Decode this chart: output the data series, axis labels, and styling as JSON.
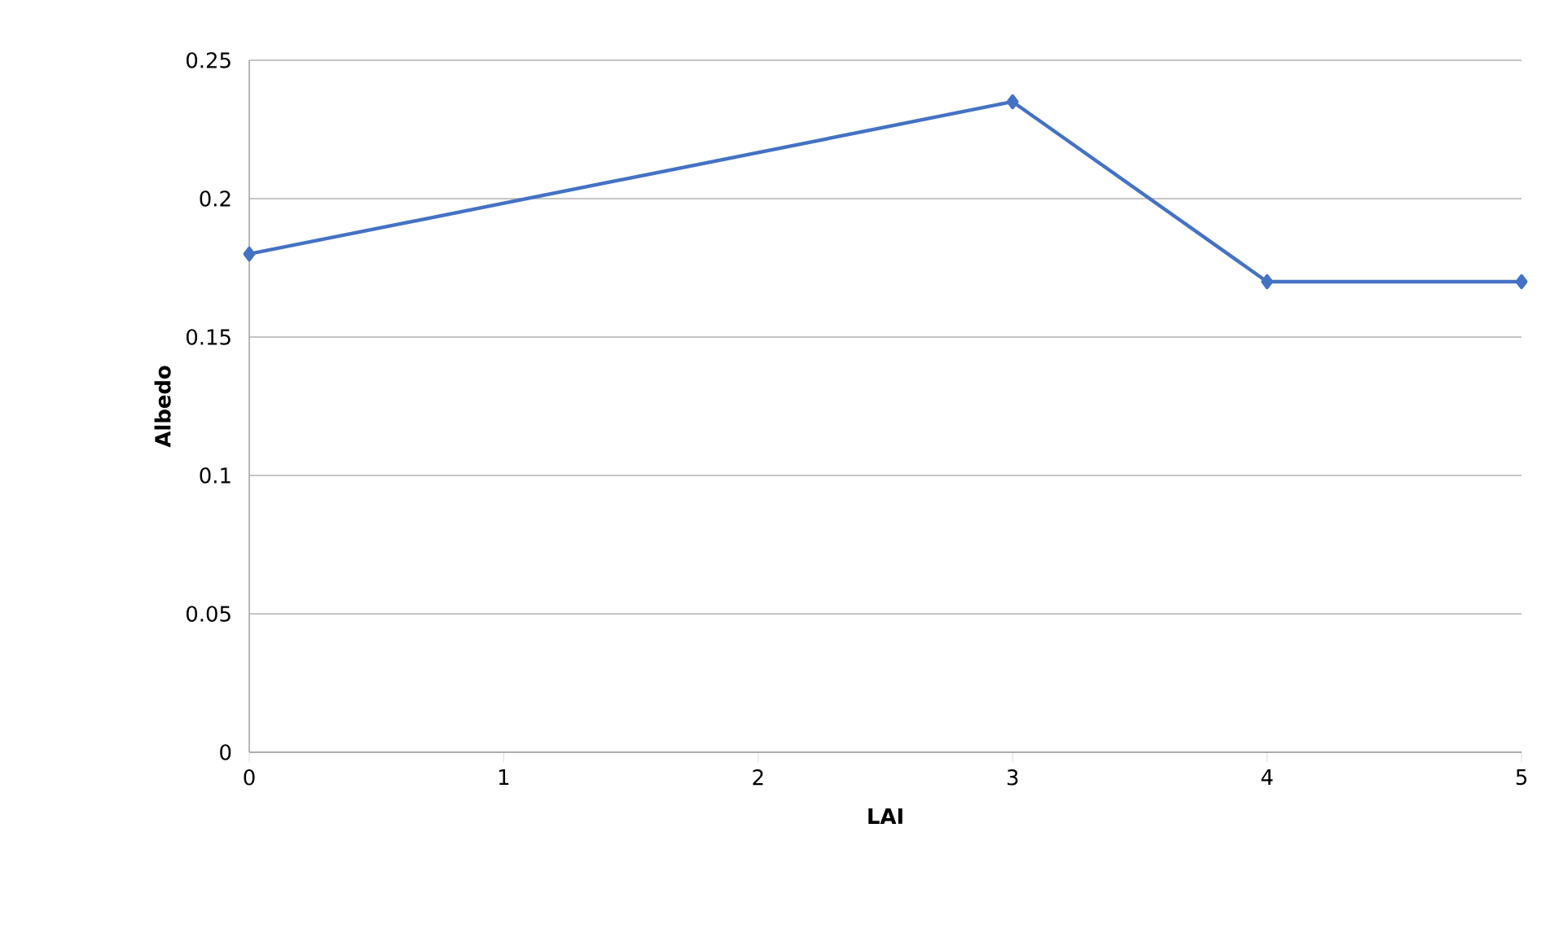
{
  "chart_data": {
    "type": "line",
    "xlabel": "LAI",
    "ylabel": "Albedo",
    "x": [
      0,
      3,
      4,
      5
    ],
    "series": [
      {
        "color": "#4472c4",
        "values": [
          0.18,
          0.235,
          0.17,
          0.17
        ]
      }
    ],
    "xlim": [
      0,
      5
    ],
    "xticks": [
      0,
      1,
      2,
      3,
      4,
      5
    ],
    "ylim": [
      0,
      0.25
    ],
    "yticks": [
      0,
      {
        "value": 0.05,
        "label": "0.05"
      },
      {
        "value": 0.1,
        "label": "0.1"
      },
      {
        "value": 0.15,
        "label": "0.15"
      },
      {
        "value": 0.2,
        "label": "0.2"
      },
      {
        "value": 0.25,
        "label": "0.25"
      }
    ],
    "grid": "y",
    "marker": "diamond"
  }
}
